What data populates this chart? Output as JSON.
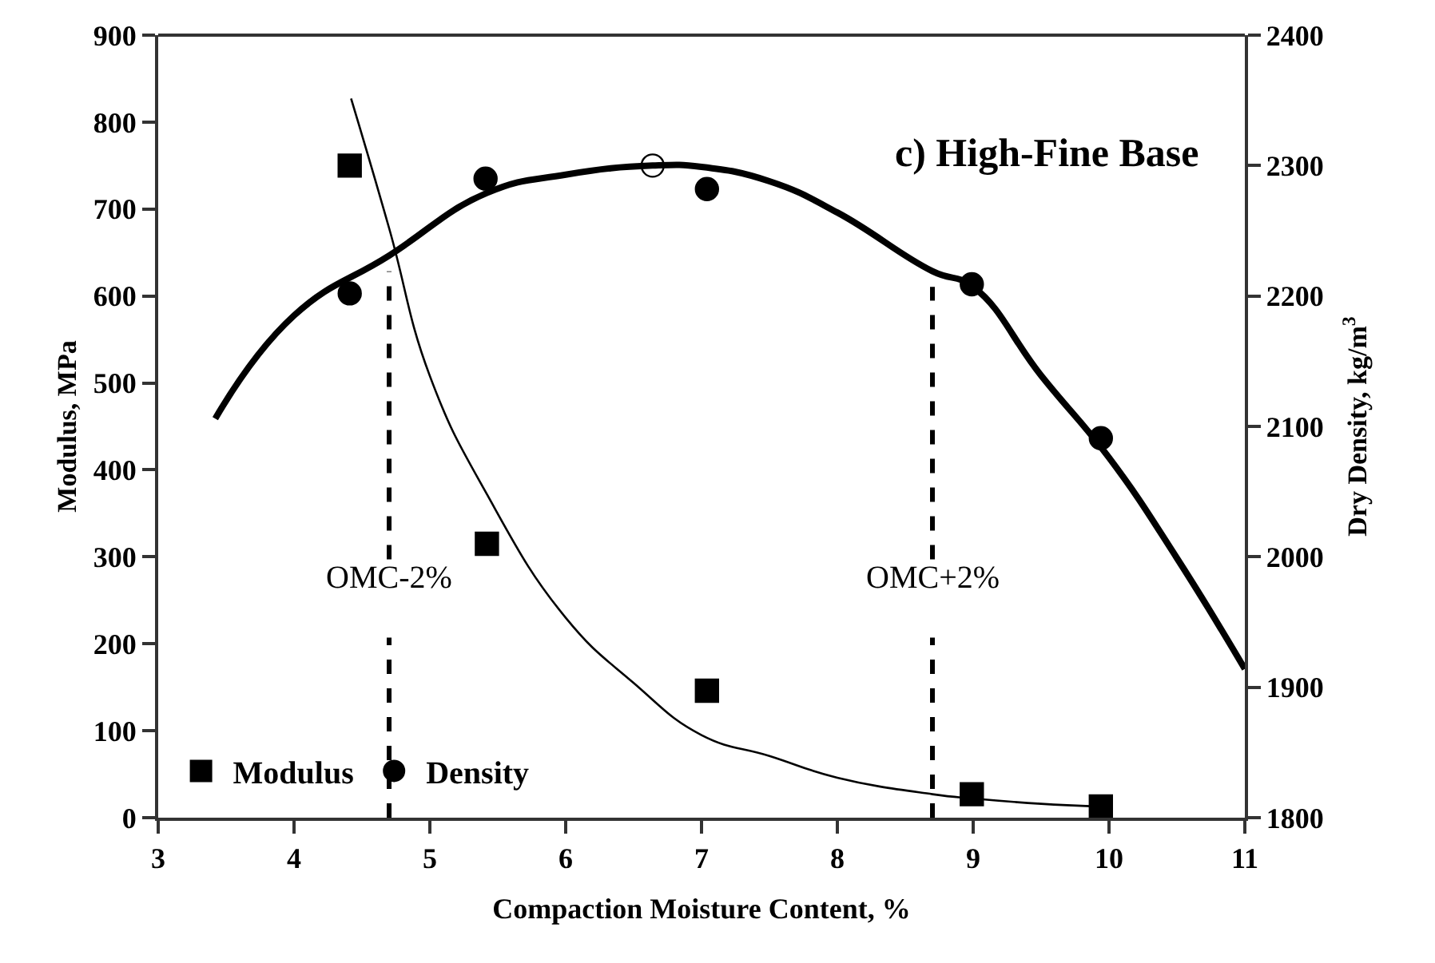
{
  "chart_data": {
    "type": "scatter",
    "title": "c) High-Fine Base",
    "xlabel": "Compaction Moisture Content, %",
    "ylabel": "Modulus, MPa",
    "y2label": "Dry Density, kg/m$^{3}$",
    "series": [
      {
        "name": "Modulus",
        "type": "scatter",
        "marker": "square",
        "color": "#000000",
        "x": [
          4.41,
          5.42,
          7.04,
          8.99,
          9.94
        ],
        "values": [
          750,
          315,
          146,
          27,
          13
        ]
      },
      {
        "name": "Density",
        "type": "scatter",
        "marker": "circle",
        "axis": "y2",
        "color": "#000000",
        "x": [
          4.41,
          5.41,
          7.04,
          8.99,
          9.94
        ],
        "values": [
          2202,
          2290,
          2282,
          2209,
          2091
        ]
      },
      {
        "marker": "circle",
        "axis": "y2",
        "color": "#ffffff",
        "x": [
          6.64
        ],
        "values": [
          2300
        ]
      },
      {
        "type": "line",
        "marker": "none",
        "color": "#000000",
        "x": [
          4.42,
          4.7,
          5.0,
          5.42,
          6.0,
          6.5,
          7.0,
          7.5,
          8.0,
          8.7,
          9.0,
          9.5,
          9.9
        ],
        "values": [
          827,
          678,
          508,
          372,
          230,
          155,
          95,
          71,
          46,
          27,
          22,
          16,
          13
        ]
      },
      {
        "type": "line",
        "marker": "none",
        "axis": "y2",
        "color": "#000000",
        "x": [
          3.42,
          4.0,
          4.7,
          5.42,
          6.0,
          6.64,
          7.0,
          7.5,
          8.0,
          8.7,
          9.0,
          9.5,
          10.0,
          10.5,
          11.0
        ],
        "values": [
          2106,
          2185,
          2231,
          2279,
          2293,
          2300,
          2299,
          2288,
          2264,
          2219,
          2207,
          2139,
          2076,
          1999,
          1914
        ]
      }
    ],
    "ref_lines": [
      {
        "axis": "x",
        "value": 4.7,
        "label": "OMC-2%",
        "line_style": "dashed"
      },
      {
        "axis": "x",
        "value": 8.7,
        "label": "OMC+2%",
        "line_style": "dashed"
      }
    ],
    "xlim": [
      3,
      11
    ],
    "xticks": [
      3,
      4,
      5,
      6,
      7,
      8,
      9,
      10,
      11
    ],
    "ylim": [
      0,
      900
    ],
    "yticks": [
      0,
      100,
      200,
      300,
      400,
      500,
      600,
      700,
      800,
      900
    ],
    "y2lim": [
      1800,
      2400
    ],
    "y2ticks": [
      1800,
      1900,
      2000,
      2100,
      2200,
      2300,
      2400
    ],
    "legend": "bottom left"
  }
}
